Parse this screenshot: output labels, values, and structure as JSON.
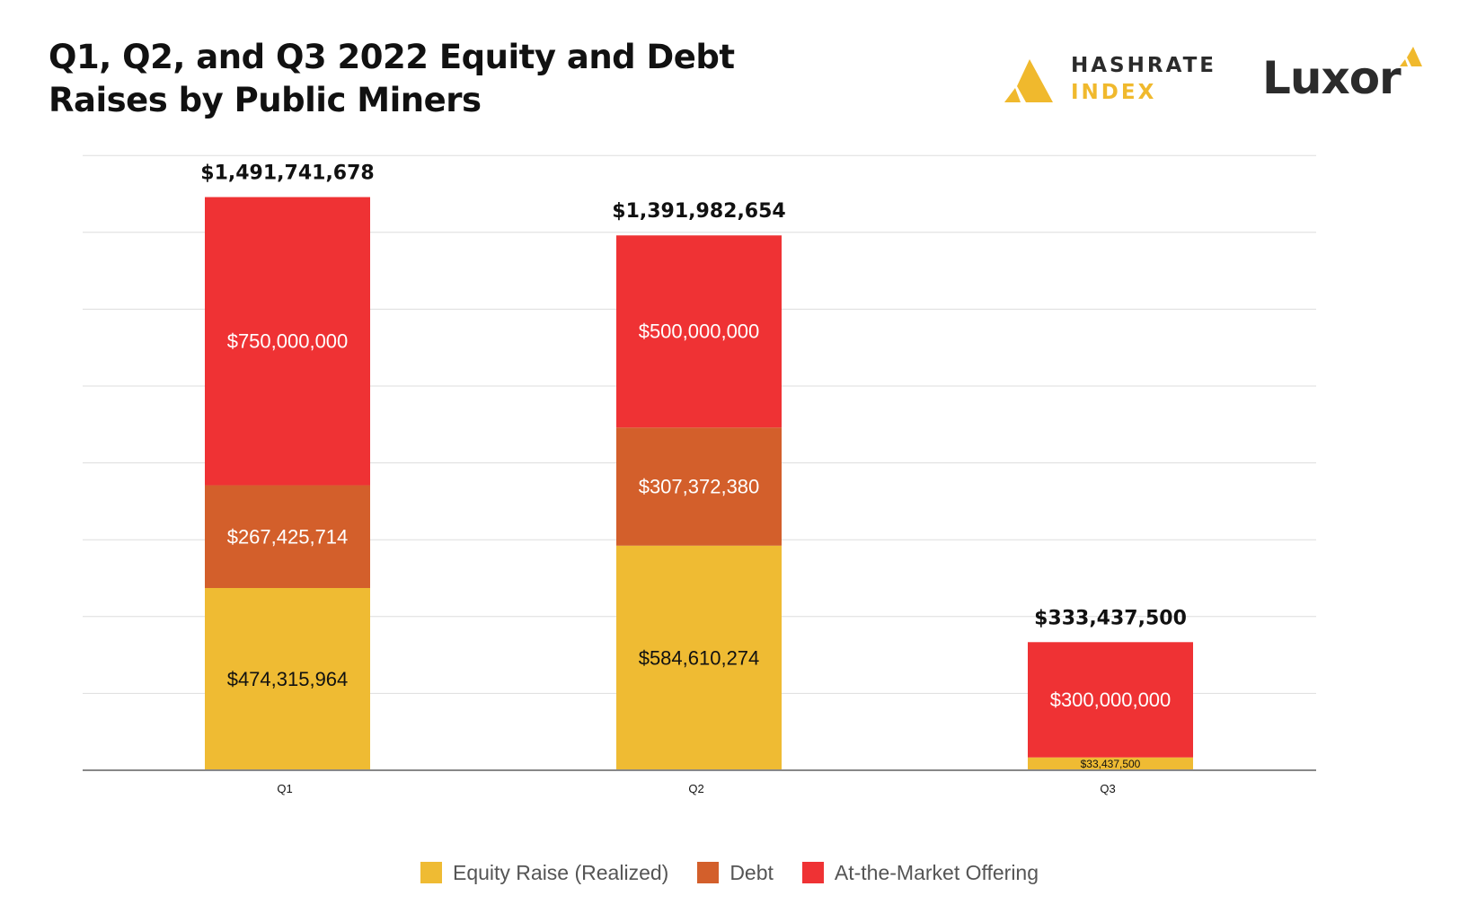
{
  "header": {
    "title_line1": "Q1, Q2, and Q3 2022 Equity and Debt",
    "title_line2": "Raises by Public Miners"
  },
  "logos": {
    "hashrate_line1": "HASHRATE",
    "hashrate_line2": "INDEX",
    "luxor": "Luxor"
  },
  "colors": {
    "equity": "#efbb33",
    "debt": "#d35f2b",
    "atm": "#ef3234",
    "grid": "#dddddd",
    "axis": "#888888"
  },
  "chart_data": {
    "type": "bar",
    "stacked": true,
    "categories": [
      "Q1",
      "Q2",
      "Q3"
    ],
    "series": [
      {
        "name": "Equity Raise (Realized)",
        "values": [
          474315964,
          584610274,
          33437500
        ],
        "labels": [
          "$474,315,964",
          "$584,610,274",
          "$33,437,500"
        ]
      },
      {
        "name": "Debt",
        "values": [
          267425714,
          307372380,
          0
        ],
        "labels": [
          "$267,425,714",
          "$307,372,380",
          ""
        ]
      },
      {
        "name": "At-the-Market Offering",
        "values": [
          750000000,
          500000000,
          300000000
        ],
        "labels": [
          "$750,000,000",
          "$500,000,000",
          "$300,000,000"
        ]
      }
    ],
    "totals": [
      1491741678,
      1391982654,
      333437500
    ],
    "total_labels": [
      "$1,491,741,678",
      "$1,391,982,654",
      "$333,437,500"
    ],
    "ylim": [
      0,
      1600000000
    ],
    "grid": true,
    "legend": "bottom"
  }
}
